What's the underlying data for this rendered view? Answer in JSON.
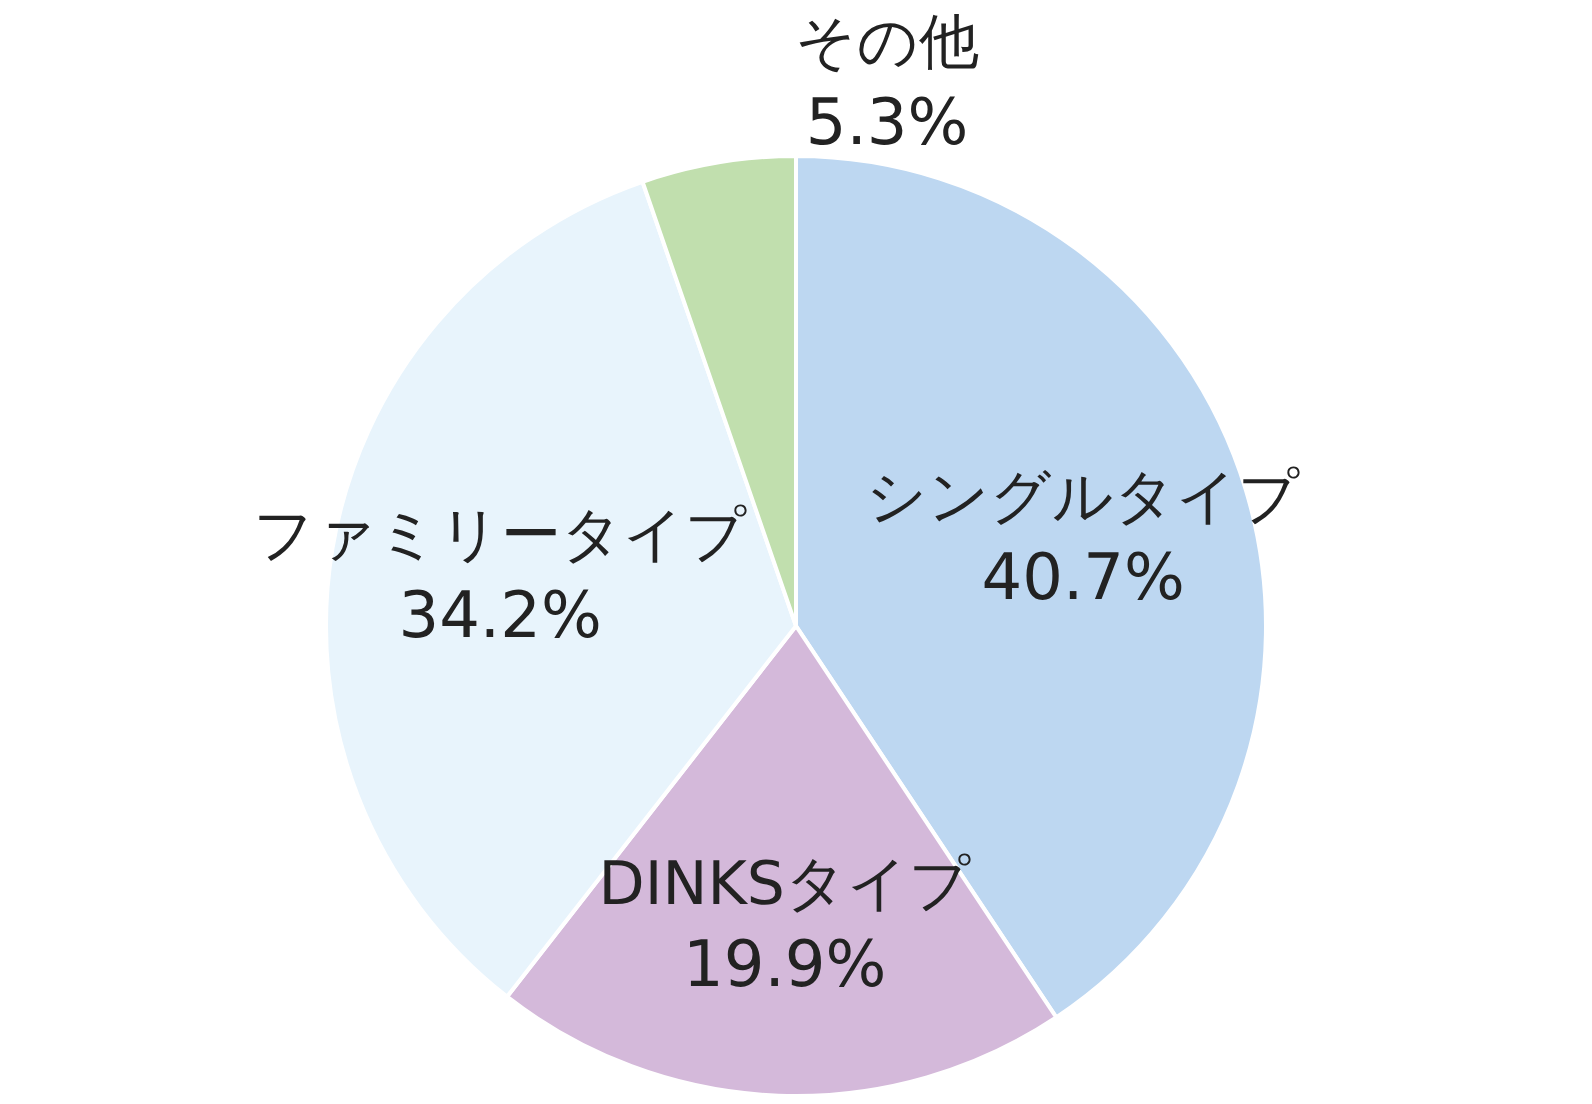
{
  "chart_data": {
    "type": "pie",
    "categories": [
      "シングルタイプ",
      "DINKSタイプ",
      "ファミリータイプ",
      "その他"
    ],
    "values": [
      40.7,
      19.9,
      34.2,
      5.3
    ],
    "colors": [
      "#bdd7f1",
      "#d4b9da",
      "#e8f4fc",
      "#c1dfae"
    ],
    "value_labels": [
      "40.7%",
      "19.9%",
      "34.2%",
      "5.3%"
    ]
  }
}
